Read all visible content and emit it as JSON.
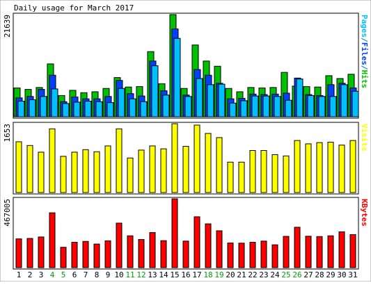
{
  "chart_data": {
    "title": "Daily usage for March 2017",
    "days": [
      {
        "label": "1",
        "weekend": false
      },
      {
        "label": "2",
        "weekend": false
      },
      {
        "label": "3",
        "weekend": false
      },
      {
        "label": "4",
        "weekend": true
      },
      {
        "label": "5",
        "weekend": true
      },
      {
        "label": "6",
        "weekend": false
      },
      {
        "label": "7",
        "weekend": false
      },
      {
        "label": "8",
        "weekend": false
      },
      {
        "label": "9",
        "weekend": false
      },
      {
        "label": "10",
        "weekend": false
      },
      {
        "label": "11",
        "weekend": true
      },
      {
        "label": "12",
        "weekend": true
      },
      {
        "label": "13",
        "weekend": false
      },
      {
        "label": "14",
        "weekend": false
      },
      {
        "label": "15",
        "weekend": false
      },
      {
        "label": "16",
        "weekend": false
      },
      {
        "label": "17",
        "weekend": false
      },
      {
        "label": "18",
        "weekend": true
      },
      {
        "label": "19",
        "weekend": true
      },
      {
        "label": "20",
        "weekend": false
      },
      {
        "label": "21",
        "weekend": false
      },
      {
        "label": "22",
        "weekend": false
      },
      {
        "label": "23",
        "weekend": false
      },
      {
        "label": "24",
        "weekend": false
      },
      {
        "label": "25",
        "weekend": true
      },
      {
        "label": "26",
        "weekend": true
      },
      {
        "label": "27",
        "weekend": false
      },
      {
        "label": "28",
        "weekend": false
      },
      {
        "label": "29",
        "weekend": false
      },
      {
        "label": "30",
        "weekend": false
      },
      {
        "label": "31",
        "weekend": false
      }
    ],
    "panels": [
      {
        "id": "hits",
        "type": "bar",
        "ymax_label": "21639",
        "ymax": 21639,
        "legend": [
          {
            "text": "Pages",
            "color": "#00c0ff"
          },
          {
            "text": "/",
            "color": "#0080c0"
          },
          {
            "text": "Files",
            "color": "#0040ff"
          },
          {
            "text": "/",
            "color": "#0080c0"
          },
          {
            "text": "Hits",
            "color": "#00c000"
          }
        ],
        "series": [
          {
            "name": "Hits",
            "color": "#00c000",
            "values": [
              6100,
              5800,
              6200,
              11200,
              4500,
              5600,
              5100,
              5300,
              6000,
              8300,
              6300,
              6400,
              13800,
              7000,
              21639,
              6000,
              15200,
              11800,
              10700,
              6000,
              5300,
              6200,
              6100,
              6200,
              9400,
              6500,
              6400,
              6300,
              8700,
              8100,
              9000
            ]
          },
          {
            "name": "Files",
            "color": "#0040ff",
            "values": [
              4000,
              4300,
              5800,
              8800,
              3200,
              4200,
              3800,
              3800,
              4300,
              7700,
              4900,
              4400,
              11800,
              5500,
              18600,
              4600,
              10000,
              8800,
              7100,
              3800,
              3900,
              4800,
              4700,
              4800,
              5000,
              8200,
              4700,
              4500,
              6800,
              7100,
              6100
            ]
          },
          {
            "name": "Pages",
            "color": "#00c0ff",
            "values": [
              3300,
              3600,
              4300,
              5900,
              2800,
              3100,
              3300,
              3200,
              3000,
              6000,
              3800,
              3200,
              10800,
              4600,
              16600,
              4300,
              8100,
              6800,
              6900,
              2900,
              3400,
              4400,
              4400,
              4300,
              3500,
              8000,
              4500,
              4300,
              4300,
              6800,
              5400
            ]
          }
        ]
      },
      {
        "id": "visits",
        "type": "bar",
        "ymax_label": "1653",
        "ymax": 1653,
        "legend": [
          {
            "text": "Visits",
            "color": "#ffff00"
          }
        ],
        "series": [
          {
            "name": "Visits",
            "color": "#ffff00",
            "values": [
              1220,
              1130,
              970,
              1530,
              870,
              970,
              1030,
              980,
              1120,
              1530,
              830,
              1020,
              1120,
              1050,
              1653,
              1110,
              1620,
              1420,
              1320,
              730,
              730,
              1010,
              1010,
              910,
              880,
              1250,
              1170,
              1200,
              1210,
              1140,
              1250
            ]
          }
        ]
      },
      {
        "id": "kbytes",
        "type": "bar",
        "ymax_label": "467005",
        "ymax": 467005,
        "legend": [
          {
            "text": "KBytes",
            "color": "#ff0000"
          }
        ],
        "series": [
          {
            "name": "KBytes",
            "color": "#ff0000",
            "values": [
              195000,
              198000,
              208000,
              372000,
              138000,
              172000,
              178000,
              160000,
              182000,
              302000,
              216000,
              191000,
              238000,
              183000,
              467005,
              180000,
              345000,
              297000,
              250000,
              167000,
              166000,
              172000,
              180000,
              155000,
              212000,
              274000,
              213000,
              211000,
              216000,
              243000,
              224000
            ]
          }
        ]
      }
    ]
  }
}
